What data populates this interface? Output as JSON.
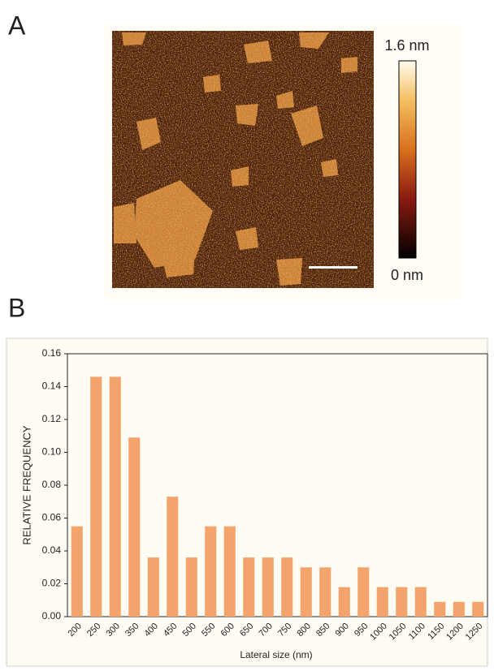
{
  "panel_a": {
    "label": "A",
    "colorbar_max": "1.6 nm",
    "colorbar_min": "0 nm"
  },
  "panel_b": {
    "label": "B"
  },
  "chart_data": {
    "type": "bar",
    "xlabel": "Lateral size (nm)",
    "ylabel": "RELATIVE FREQUENCY",
    "categories": [
      "200",
      "250",
      "300",
      "350",
      "400",
      "450",
      "500",
      "550",
      "600",
      "650",
      "700",
      "750",
      "800",
      "850",
      "900",
      "950",
      "1000",
      "1050",
      "1100",
      "1150",
      "1200",
      "1250"
    ],
    "values": [
      0.055,
      0.146,
      0.146,
      0.109,
      0.036,
      0.073,
      0.036,
      0.055,
      0.055,
      0.036,
      0.036,
      0.036,
      0.03,
      0.03,
      0.018,
      0.03,
      0.018,
      0.018,
      0.018,
      0.009,
      0.009,
      0.009
    ],
    "color": "#f2a46c",
    "ylim": [
      0,
      0.16
    ],
    "yticks": [
      {
        "value": 0,
        "label": "0.00"
      },
      {
        "value": 0.02,
        "label": "0.02"
      },
      {
        "value": 0.04,
        "label": "0.04"
      },
      {
        "value": 0.06,
        "label": "0.06"
      },
      {
        "value": 0.08,
        "label": "0.08"
      },
      {
        "value": 0.1,
        "label": "0.10"
      },
      {
        "value": 0.12,
        "label": "0.12"
      },
      {
        "value": 0.14,
        "label": "0.14"
      },
      {
        "value": 0.16,
        "label": "0.16"
      }
    ],
    "grid": false
  }
}
